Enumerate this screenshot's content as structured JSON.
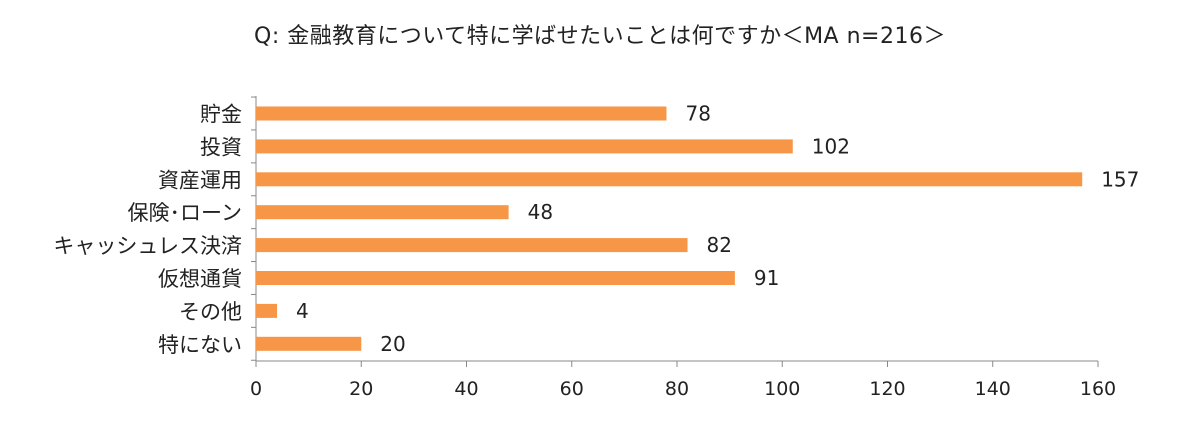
{
  "chart_data": {
    "type": "bar",
    "orientation": "horizontal",
    "title": "Q: 金融教育について特に学ばせたいことは何ですか＜MA n=216＞",
    "categories": [
      "貯金",
      "投資",
      "資産運用",
      "保険･ローン",
      "キャッシュレス決済",
      "仮想通貨",
      "その他",
      "特にない"
    ],
    "values": [
      78,
      102,
      157,
      48,
      82,
      91,
      4,
      20
    ],
    "xlim": [
      0,
      160
    ],
    "xticks": [
      0,
      20,
      40,
      60,
      80,
      100,
      120,
      140,
      160
    ],
    "grid": false,
    "legend": "none",
    "bar_color": "#F79646"
  }
}
